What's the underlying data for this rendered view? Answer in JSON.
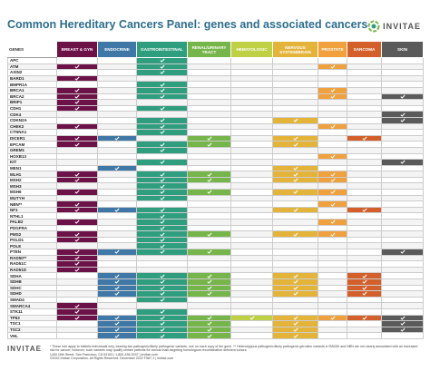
{
  "header": {
    "title": "Common Hereditary Cancers Panel: genes and associated cancers",
    "logo": "INVITAE"
  },
  "table": {
    "gene_header": "GENES",
    "columns": [
      {
        "name": "BREAST & GYN",
        "color": "#6d1149"
      },
      {
        "name": "ENDOCRINE",
        "color": "#3f77a6"
      },
      {
        "name": "GASTROINTESTINAL",
        "color": "#2f9e7f"
      },
      {
        "name": "RENAL/URINARY TRACT",
        "color": "#76b54a"
      },
      {
        "name": "HEMATOLOGIC",
        "color": "#bfd044"
      },
      {
        "name": "NERVOUS SYSTEM/BRAIN",
        "color": "#e4b43a"
      },
      {
        "name": "PROSTATE",
        "color": "#f0a03c"
      },
      {
        "name": "SARCOMA",
        "color": "#d3602b"
      },
      {
        "name": "SKIN",
        "color": "#5a5a5a"
      }
    ],
    "rows": [
      {
        "gene": "APC",
        "checks": [
          false,
          false,
          true,
          false,
          false,
          false,
          false,
          false,
          false
        ]
      },
      {
        "gene": "ATM",
        "checks": [
          true,
          false,
          true,
          false,
          false,
          false,
          true,
          false,
          false
        ]
      },
      {
        "gene": "AXIN2",
        "checks": [
          false,
          false,
          true,
          false,
          false,
          false,
          false,
          false,
          false
        ]
      },
      {
        "gene": "BARD1",
        "checks": [
          true,
          false,
          false,
          false,
          false,
          false,
          false,
          false,
          false
        ]
      },
      {
        "gene": "BMPR1A",
        "checks": [
          false,
          false,
          true,
          false,
          false,
          false,
          false,
          false,
          false
        ]
      },
      {
        "gene": "BRCA1",
        "checks": [
          true,
          false,
          true,
          false,
          false,
          false,
          true,
          false,
          false
        ]
      },
      {
        "gene": "BRCA2",
        "checks": [
          true,
          false,
          true,
          false,
          false,
          false,
          true,
          false,
          true
        ]
      },
      {
        "gene": "BRIP1",
        "checks": [
          true,
          false,
          false,
          false,
          false,
          false,
          false,
          false,
          false
        ]
      },
      {
        "gene": "CDH1",
        "checks": [
          true,
          false,
          true,
          false,
          false,
          false,
          false,
          false,
          false
        ]
      },
      {
        "gene": "CDK4",
        "checks": [
          false,
          false,
          false,
          false,
          false,
          false,
          false,
          false,
          true
        ]
      },
      {
        "gene": "CDKN2A",
        "checks": [
          false,
          false,
          true,
          false,
          false,
          true,
          false,
          false,
          true
        ]
      },
      {
        "gene": "CHEK2",
        "checks": [
          true,
          false,
          true,
          false,
          false,
          false,
          true,
          false,
          false
        ]
      },
      {
        "gene": "CTNNA1",
        "checks": [
          false,
          false,
          true,
          false,
          false,
          false,
          false,
          false,
          false
        ]
      },
      {
        "gene": "DICER1",
        "checks": [
          true,
          true,
          false,
          true,
          false,
          true,
          false,
          true,
          false
        ]
      },
      {
        "gene": "EPCAM",
        "checks": [
          true,
          false,
          true,
          true,
          false,
          true,
          false,
          false,
          false
        ]
      },
      {
        "gene": "GREM1",
        "checks": [
          false,
          false,
          true,
          false,
          false,
          false,
          false,
          false,
          false
        ]
      },
      {
        "gene": "HOXB13",
        "checks": [
          false,
          false,
          false,
          false,
          false,
          false,
          true,
          false,
          false
        ]
      },
      {
        "gene": "KIT",
        "checks": [
          false,
          false,
          true,
          false,
          false,
          false,
          false,
          false,
          true
        ]
      },
      {
        "gene": "MEN1",
        "checks": [
          false,
          true,
          false,
          false,
          false,
          true,
          false,
          false,
          false
        ]
      },
      {
        "gene": "MLH1",
        "checks": [
          true,
          false,
          true,
          true,
          false,
          true,
          true,
          false,
          false
        ]
      },
      {
        "gene": "MSH2",
        "checks": [
          true,
          false,
          true,
          true,
          false,
          true,
          true,
          false,
          false
        ]
      },
      {
        "gene": "MSH3",
        "checks": [
          false,
          false,
          true,
          false,
          false,
          false,
          false,
          false,
          false
        ]
      },
      {
        "gene": "MSH6",
        "checks": [
          true,
          false,
          true,
          true,
          false,
          true,
          true,
          false,
          false
        ]
      },
      {
        "gene": "MUTYH",
        "checks": [
          false,
          false,
          true,
          false,
          false,
          false,
          false,
          false,
          false
        ]
      },
      {
        "gene": "NBN**",
        "checks": [
          true,
          false,
          false,
          false,
          false,
          false,
          true,
          false,
          false
        ]
      },
      {
        "gene": "NF1",
        "checks": [
          true,
          true,
          true,
          false,
          false,
          true,
          false,
          true,
          false
        ]
      },
      {
        "gene": "NTHL1",
        "checks": [
          false,
          false,
          true,
          false,
          false,
          false,
          false,
          false,
          false
        ]
      },
      {
        "gene": "PALB2",
        "checks": [
          true,
          false,
          true,
          false,
          false,
          false,
          true,
          false,
          false
        ]
      },
      {
        "gene": "PDGFRA",
        "checks": [
          false,
          false,
          true,
          false,
          false,
          false,
          false,
          false,
          false
        ]
      },
      {
        "gene": "PMS2",
        "checks": [
          true,
          false,
          true,
          true,
          false,
          true,
          true,
          false,
          false
        ]
      },
      {
        "gene": "POLD1",
        "checks": [
          true,
          false,
          true,
          false,
          false,
          false,
          false,
          false,
          false
        ]
      },
      {
        "gene": "POLE",
        "checks": [
          false,
          false,
          true,
          false,
          false,
          false,
          false,
          false,
          false
        ]
      },
      {
        "gene": "PTEN",
        "checks": [
          true,
          true,
          true,
          true,
          false,
          false,
          false,
          false,
          true
        ]
      },
      {
        "gene": "RAD50**",
        "checks": [
          true,
          false,
          false,
          false,
          false,
          false,
          false,
          false,
          false
        ]
      },
      {
        "gene": "RAD51C",
        "checks": [
          true,
          false,
          false,
          false,
          false,
          false,
          false,
          false,
          false
        ]
      },
      {
        "gene": "RAD51D",
        "checks": [
          true,
          false,
          false,
          false,
          false,
          false,
          false,
          false,
          false
        ]
      },
      {
        "gene": "SDHA",
        "checks": [
          false,
          true,
          true,
          true,
          false,
          true,
          false,
          true,
          false
        ]
      },
      {
        "gene": "SDHB",
        "checks": [
          false,
          true,
          true,
          true,
          false,
          true,
          false,
          true,
          false
        ]
      },
      {
        "gene": "SDHC",
        "checks": [
          false,
          true,
          true,
          true,
          false,
          true,
          false,
          true,
          false
        ]
      },
      {
        "gene": "SDHD",
        "checks": [
          false,
          true,
          true,
          true,
          false,
          true,
          false,
          true,
          false
        ]
      },
      {
        "gene": "SMAD4",
        "checks": [
          false,
          false,
          true,
          false,
          false,
          false,
          false,
          false,
          false
        ]
      },
      {
        "gene": "SMARCA4",
        "checks": [
          true,
          false,
          false,
          false,
          false,
          false,
          false,
          false,
          false
        ]
      },
      {
        "gene": "STK11",
        "checks": [
          true,
          false,
          true,
          false,
          false,
          false,
          false,
          false,
          false
        ]
      },
      {
        "gene": "TP53",
        "checks": [
          true,
          true,
          true,
          true,
          true,
          true,
          true,
          true,
          true
        ]
      },
      {
        "gene": "TSC1",
        "checks": [
          false,
          true,
          true,
          true,
          false,
          true,
          false,
          false,
          true
        ]
      },
      {
        "gene": "TSC2",
        "checks": [
          false,
          true,
          true,
          true,
          false,
          true,
          false,
          false,
          true
        ]
      },
      {
        "gene": "VHL",
        "checks": [
          false,
          true,
          true,
          true,
          false,
          true,
          false,
          false,
          false
        ]
      }
    ]
  },
  "footer": {
    "logo": "INVITAE",
    "note": "* These rule apply to biallelic individuals only, bearing two pathogenic/likely pathogenic variants, one on each copy of the gene. ** Heterozygous pathogenic/likely pathogenic germline variants in RAD50 and NBN are not clearly associated with an increased risk for cancer; however, such variants may qualify certain patients for clinical trials targeting homologous recombination deficient tumors.",
    "address": "1400 16th Street, San Francisco, CA 94103 | 1-800-436-3037 | invitae.com",
    "copyright": "©2022 Invitae Corporation. All Rights Reserved. December 2022 F587-1 | invitae.com"
  }
}
